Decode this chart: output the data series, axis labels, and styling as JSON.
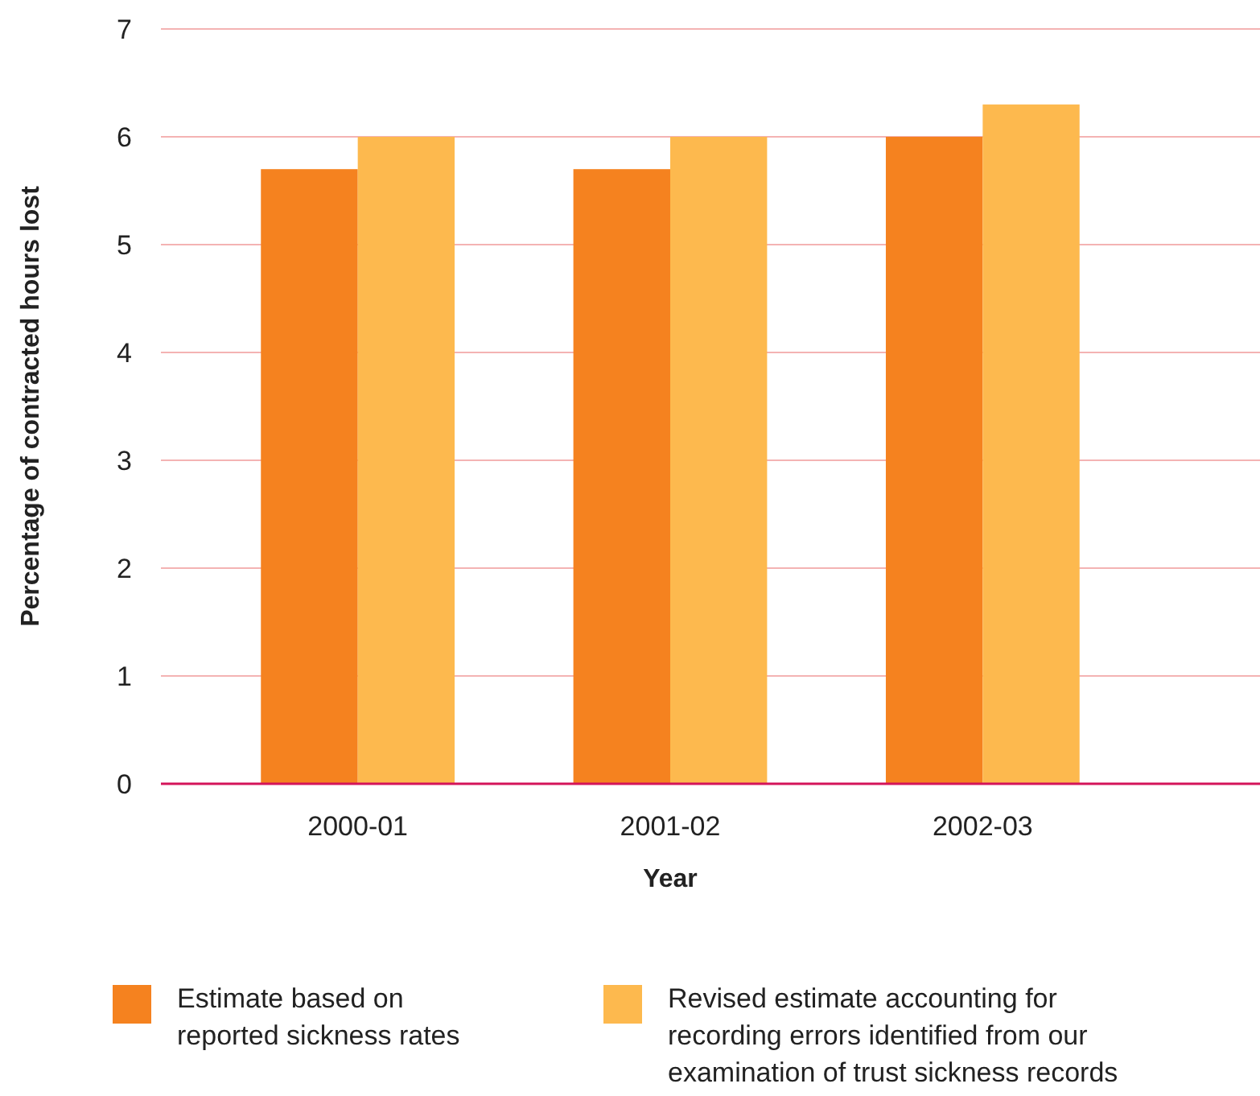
{
  "chart_data": {
    "type": "bar",
    "xlabel": "Year",
    "ylabel": "Percentage of contracted hours lost",
    "categories": [
      "2000-01",
      "2001-02",
      "2002-03"
    ],
    "series": [
      {
        "name": "Estimate based on reported sickness rates",
        "color": "#f5821f",
        "values": [
          5.7,
          5.7,
          6.0
        ]
      },
      {
        "name": "Revised estimate accounting for recording errors identified from our examination of trust sickness records",
        "color": "#fdb94e",
        "values": [
          6.0,
          6.0,
          6.3
        ]
      }
    ],
    "ylim": [
      0,
      7
    ],
    "yticks": [
      0,
      1,
      2,
      3,
      4,
      5,
      6,
      7
    ],
    "grid": "y",
    "legend": "bottom"
  }
}
